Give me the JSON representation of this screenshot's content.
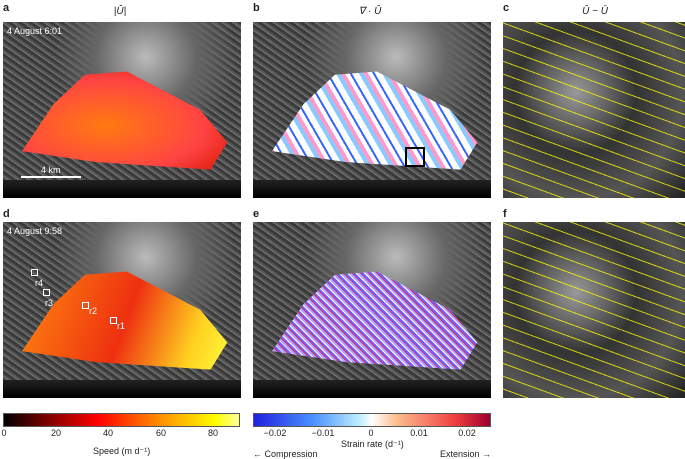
{
  "panels": {
    "a": {
      "label": "a",
      "title": "|Û|",
      "date": "4 August 6:01",
      "scale": "4 km"
    },
    "b": {
      "label": "b",
      "title": "∇ · Û"
    },
    "c": {
      "label": "c",
      "title": "Û − Ū"
    },
    "d": {
      "label": "d",
      "date": "4 August 9:58",
      "regions": [
        "r1",
        "r2",
        "r3",
        "r4"
      ]
    },
    "e": {
      "label": "e"
    },
    "f": {
      "label": "f"
    }
  },
  "colorbars": {
    "speed": {
      "label": "Speed (m d⁻¹)",
      "ticks": [
        "0",
        "20",
        "40",
        "60",
        "80"
      ],
      "range": [
        0,
        90
      ]
    },
    "strain": {
      "label": "Strain rate (d⁻¹)",
      "ticks": [
        "−0.02",
        "−0.01",
        "0",
        "0.01",
        "0.02"
      ],
      "range": [
        -0.025,
        0.025
      ],
      "left_caption": "← Compression",
      "right_caption": "Extension →"
    }
  }
}
